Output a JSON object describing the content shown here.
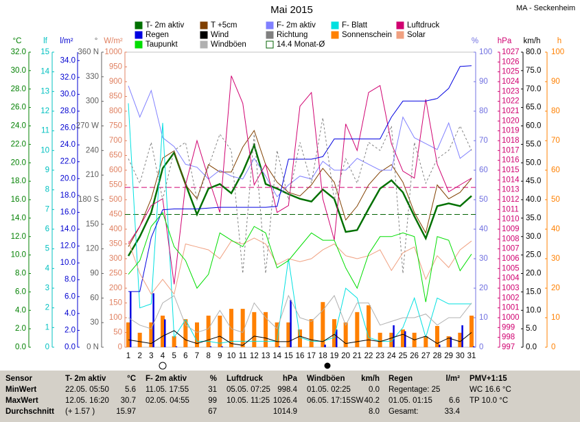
{
  "chart_data": {
    "type": "line",
    "title": "Mai 2015",
    "location": "MA - Seckenheim",
    "categories": [
      1,
      2,
      3,
      4,
      5,
      6,
      7,
      8,
      9,
      10,
      11,
      12,
      13,
      14,
      15,
      16,
      17,
      18,
      19,
      20,
      21,
      22,
      23,
      24,
      25,
      26,
      27,
      28,
      29,
      30,
      31
    ],
    "axes": [
      {
        "label": "°C",
        "color": "#008000",
        "ylim": [
          0,
          32
        ],
        "yticks": [
          {
            "value": 0,
            "label": "0.0"
          },
          {
            "value": 2,
            "label": "2.0"
          },
          {
            "value": 4,
            "label": "4.0"
          },
          {
            "value": 6,
            "label": "6.0"
          },
          {
            "value": 8,
            "label": "8.0"
          },
          {
            "value": 10,
            "label": "10.0"
          },
          {
            "value": 12,
            "label": "12.0"
          },
          {
            "value": 14,
            "label": "14.0"
          },
          {
            "value": 16,
            "label": "16.0"
          },
          {
            "value": 18,
            "label": "18.0"
          },
          {
            "value": 20,
            "label": "20.0"
          },
          {
            "value": 22,
            "label": "22.0"
          },
          {
            "value": 24,
            "label": "24.0"
          },
          {
            "value": 26,
            "label": "26.0"
          },
          {
            "value": 28,
            "label": "28.0"
          },
          {
            "value": 30,
            "label": "30.0"
          },
          {
            "value": 32,
            "label": "32.0"
          }
        ]
      },
      {
        "label": "lf",
        "color": "#00c0c0",
        "ylim": [
          0,
          15
        ],
        "yticks": [
          0,
          1,
          2,
          3,
          4,
          5,
          6,
          7,
          8,
          9,
          10,
          11,
          12,
          13,
          14,
          15
        ]
      },
      {
        "label": "l/m²",
        "color": "#0000d0",
        "ylim": [
          0,
          35
        ],
        "yticks": [
          {
            "value": 0,
            "label": "0.0"
          },
          {
            "value": 2,
            "label": "2.0"
          },
          {
            "value": 4,
            "label": "4.0"
          },
          {
            "value": 6,
            "label": "6.0"
          },
          {
            "value": 8,
            "label": "8.0"
          },
          {
            "value": 10,
            "label": "10.0"
          },
          {
            "value": 12,
            "label": "12.0"
          },
          {
            "value": 14,
            "label": "14.0"
          },
          {
            "value": 16,
            "label": "16.0"
          },
          {
            "value": 18,
            "label": "18.0"
          },
          {
            "value": 20,
            "label": "20.0"
          },
          {
            "value": 22,
            "label": "22.0"
          },
          {
            "value": 24,
            "label": "24.0"
          },
          {
            "value": 26,
            "label": "26.0"
          },
          {
            "value": 28,
            "label": "28.0"
          },
          {
            "value": 30,
            "label": "30.0"
          },
          {
            "value": 32,
            "label": "32.0"
          },
          {
            "value": 34,
            "label": "34.0"
          }
        ]
      },
      {
        "label": "°",
        "color": "#606060",
        "ylim": [
          0,
          360
        ],
        "yticks": [
          {
            "value": 0,
            "label": "0 N"
          },
          30,
          60,
          90,
          120,
          150,
          {
            "value": 180,
            "label": "180 S"
          },
          210,
          240,
          {
            "value": 270,
            "label": "270 W"
          },
          300,
          330,
          {
            "value": 360,
            "label": "360 N"
          }
        ]
      },
      {
        "label": "W/m²",
        "color": "#e08060",
        "ylim": [
          0,
          1000
        ],
        "yticks": [
          0,
          50,
          100,
          150,
          200,
          250,
          300,
          350,
          400,
          450,
          500,
          550,
          600,
          650,
          700,
          750,
          800,
          850,
          900,
          950,
          1000
        ]
      },
      {
        "label": "%",
        "color": "#7070e0",
        "ylim": [
          0,
          100
        ],
        "yticks": [
          0,
          10,
          20,
          30,
          40,
          50,
          60,
          70,
          80,
          90,
          100
        ]
      },
      {
        "label": "hPa",
        "color": "#d00070",
        "ylim": [
          997,
          1027
        ],
        "yticks": [
          997,
          998,
          999,
          1000,
          1001,
          1002,
          1003,
          1004,
          1005,
          1006,
          1007,
          1008,
          1009,
          1010,
          1011,
          1012,
          1013,
          1014,
          1015,
          1016,
          1017,
          1018,
          1019,
          1020,
          1021,
          1022,
          1023,
          1024,
          1025,
          1026,
          1027
        ]
      },
      {
        "label": "km/h",
        "color": "#000000",
        "ylim": [
          0,
          80
        ],
        "yticks": [
          {
            "value": 0,
            "label": "0.0"
          },
          {
            "value": 5,
            "label": "5.0"
          },
          {
            "value": 10,
            "label": "10.0"
          },
          {
            "value": 15,
            "label": "15.0"
          },
          {
            "value": 20,
            "label": "20.0"
          },
          {
            "value": 25,
            "label": "25.0"
          },
          {
            "value": 30,
            "label": "30.0"
          },
          {
            "value": 35,
            "label": "35.0"
          },
          {
            "value": 40,
            "label": "40.0"
          },
          {
            "value": 45,
            "label": "45.0"
          },
          {
            "value": 50,
            "label": "50.0"
          },
          {
            "value": 55,
            "label": "55.0"
          },
          {
            "value": 60,
            "label": "60.0"
          },
          {
            "value": 65,
            "label": "65.0"
          },
          {
            "value": 70,
            "label": "70.0"
          },
          {
            "value": 75,
            "label": "75.0"
          },
          {
            "value": 80,
            "label": "80.0"
          }
        ]
      },
      {
        "label": "h",
        "color": "#ff8000",
        "ylim": [
          0,
          100
        ],
        "yticks": [
          0,
          10,
          20,
          30,
          40,
          50,
          60,
          70,
          80,
          90,
          100
        ]
      }
    ],
    "series": [
      {
        "name": "T- 2m aktiv",
        "color": "#007000",
        "axis": 0,
        "style": "line",
        "width": 2.5,
        "values": [
          9.9,
          12,
          14.6,
          19.4,
          21.1,
          17.7,
          14.4,
          17.2,
          17.7,
          16.7,
          19,
          21.9,
          17.7,
          17.2,
          16.6,
          16.1,
          15.8,
          17.1,
          16.1,
          12.5,
          12.7,
          15,
          17.2,
          18.1,
          16.8,
          14.2,
          11.8,
          15.3,
          15.6,
          15.3,
          16.4
        ]
      },
      {
        "name": "T +5cm",
        "color": "#804000",
        "axis": 0,
        "style": "line",
        "width": 1,
        "values": [
          10.9,
          13.1,
          16.1,
          20.5,
          21.3,
          17.6,
          16.1,
          19.8,
          19,
          19,
          21.7,
          23.5,
          19.8,
          17.9,
          16.8,
          16.4,
          17.6,
          19.4,
          17.9,
          13.8,
          15.3,
          17.6,
          19,
          19.8,
          17.9,
          14.6,
          12.4,
          17.6,
          16.1,
          16.8,
          18.3
        ]
      },
      {
        "name": "F- 2m aktiv",
        "color": "#8080ff",
        "axis": 5,
        "style": "line",
        "width": 1,
        "values": [
          88.6,
          78,
          87,
          71,
          68,
          62,
          61,
          57,
          60,
          58,
          57,
          64,
          58,
          51,
          55,
          58,
          57,
          63,
          60,
          60,
          64,
          62,
          60,
          60,
          78,
          71,
          69,
          67,
          76,
          64,
          67
        ]
      },
      {
        "name": "F- Blatt",
        "color": "#00e0e0",
        "axis": 1,
        "style": "line",
        "width": 1,
        "values": [
          12.4,
          2,
          2.2,
          11.4,
          0.5,
          1.4,
          0.3,
          0.3,
          0.2,
          0.3,
          0.3,
          0.3,
          0.3,
          0.3,
          4.5,
          0.5,
          0.3,
          0.3,
          0.5,
          3,
          2.5,
          0.5,
          0.3,
          0.3,
          1,
          2.5,
          0.5,
          2.5,
          2.2,
          2.2,
          2.2
        ]
      },
      {
        "name": "Luftdruck",
        "color": "#d00070",
        "axis": 6,
        "style": "line",
        "width": 1,
        "values": [
          1007.5,
          1009.3,
          1011.4,
          1012.1,
          1003.4,
          1013.5,
          1018,
          1014.2,
          1010.7,
          1024.6,
          1021.8,
          1013.5,
          1015.6,
          1010.7,
          1011.4,
          1021.5,
          1022.9,
          1012.1,
          1007.9,
          1019.7,
          1017,
          1022.9,
          1023.6,
          1017.7,
          1014.9,
          1014.2,
          1022.2,
          1015.6,
          1012.8,
          1013.5,
          1014.2
        ]
      },
      {
        "name": "Regen",
        "color": "#0000e0",
        "axis": 2,
        "style": "line",
        "width": 1,
        "values": [
          6.6,
          6.6,
          13,
          16.3,
          16.4,
          16.4,
          16.4,
          16.5,
          16.6,
          16.6,
          16.6,
          16.6,
          16.6,
          16.7,
          22.3,
          22.3,
          22.3,
          22.6,
          24.7,
          24.7,
          24.7,
          24.7,
          24.7,
          27.3,
          29.2,
          29.2,
          29.2,
          29.5,
          30.7,
          33.3,
          33.4
        ],
        "daily": [
          6.6,
          0,
          6.4,
          3.3,
          0.1,
          0,
          0,
          0.1,
          0.1,
          0,
          0,
          0,
          0,
          0.1,
          5.6,
          0,
          0,
          0.3,
          2.1,
          0,
          0,
          0,
          0,
          2.6,
          1.9,
          0,
          0,
          0.3,
          1.2,
          2.6,
          0.1
        ]
      },
      {
        "name": "Wind",
        "color": "#000000",
        "axis": 7,
        "style": "line",
        "width": 1,
        "values": [
          2,
          1.5,
          1,
          3,
          4.5,
          2,
          1,
          2,
          3,
          1,
          0.5,
          3,
          2.5,
          1.5,
          1.5,
          3,
          2,
          1.5,
          3.5,
          1,
          1.5,
          2,
          1.5,
          2.5,
          3.5,
          2,
          3,
          1,
          2.5,
          1.5,
          4
        ]
      },
      {
        "name": "Richtung",
        "color": "#808080",
        "axis": 3,
        "style": "dashed",
        "width": 1,
        "values": [
          230,
          200,
          250,
          180,
          240,
          250,
          180,
          220,
          260,
          240,
          90,
          260,
          90,
          240,
          180,
          250,
          200,
          280,
          180,
          230,
          200,
          250,
          240,
          270,
          90,
          250,
          200,
          230,
          240,
          270,
          240
        ]
      },
      {
        "name": "Sonnenschein",
        "color": "#ff8000",
        "axis": 8,
        "style": "bar",
        "width": 1,
        "values": [
          8.4,
          4.9,
          8.4,
          10.7,
          3.7,
          9.5,
          8.4,
          10.7,
          10.7,
          13,
          13,
          11.9,
          11.9,
          8.4,
          8.4,
          6,
          9.5,
          15.3,
          9.5,
          8.4,
          11.9,
          14.2,
          4.9,
          4.9,
          6,
          4.9,
          3.7,
          7.2,
          3.7,
          4.9,
          10.7
        ]
      },
      {
        "name": "Solar",
        "color": "#f0a080",
        "axis": 4,
        "style": "line",
        "width": 1,
        "values": [
          360,
          250,
          180,
          230,
          180,
          350,
          340,
          330,
          300,
          360,
          350,
          370,
          350,
          280,
          300,
          290,
          300,
          330,
          350,
          310,
          300,
          310,
          330,
          260,
          320,
          340,
          230,
          310,
          270,
          330,
          360
        ]
      },
      {
        "name": "Taupunkt",
        "color": "#00dd00",
        "axis": 0,
        "style": "line",
        "width": 1,
        "values": [
          7.9,
          9.4,
          13.1,
          14.6,
          10.9,
          9.4,
          6.4,
          7.9,
          12.4,
          11.6,
          10.9,
          13.1,
          12.4,
          8.6,
          9.4,
          10.9,
          12.4,
          11.6,
          11.6,
          8.6,
          6.4,
          10.1,
          12,
          12,
          12.4,
          12,
          4.9,
          12,
          11.6,
          8.3,
          10.1
        ]
      },
      {
        "name": "Windböen",
        "color": "#b0b0b0",
        "axis": 7,
        "style": "line",
        "width": 1,
        "values": [
          8,
          6,
          5,
          12,
          14,
          6,
          4,
          5,
          10,
          5,
          4,
          12,
          8,
          5,
          14,
          8,
          7,
          10,
          14,
          6,
          12,
          12,
          6,
          7,
          8,
          8,
          9,
          6,
          8,
          8,
          12
        ]
      }
    ],
    "reference_lines": [
      {
        "name": "14.4 Monat-Ø",
        "color": "#006000",
        "axis": 0,
        "value": 14.4
      },
      {
        "color": "#d00070",
        "axis": 6,
        "value": 1013.25
      }
    ]
  },
  "table": {
    "rows": [
      [
        "Sensor",
        "T- 2m aktiv",
        "°C",
        "F- 2m aktiv",
        "%",
        "Luftdruck",
        "hPa",
        "Windböen",
        "km/h",
        "Regen",
        "l/m²",
        "PMV+1:15"
      ],
      [
        "MinWert",
        "22.05.  05:50",
        "5.6",
        "11.05.  17:55",
        "31",
        "05.05.  07:25",
        "998.4",
        "01.05.  02:25",
        "0.0",
        "Regentage: 25",
        null,
        "WC 16.6 °C"
      ],
      [
        "MaxWert",
        "12.05.  16:20",
        "30.7",
        "02.05.  04:55",
        "99",
        "10.05.  11:25",
        "1026.4",
        "06.05.  17:15SW",
        "40.2",
        "01.05.  01:15",
        "6.6",
        "TP 10.0 °C"
      ],
      [
        "Durchschnitt",
        "(+ 1.57 )",
        "15.97",
        null,
        "67",
        null,
        "1014.9",
        null,
        "8.0",
        "Gesamt:",
        "33.4",
        null
      ]
    ]
  }
}
